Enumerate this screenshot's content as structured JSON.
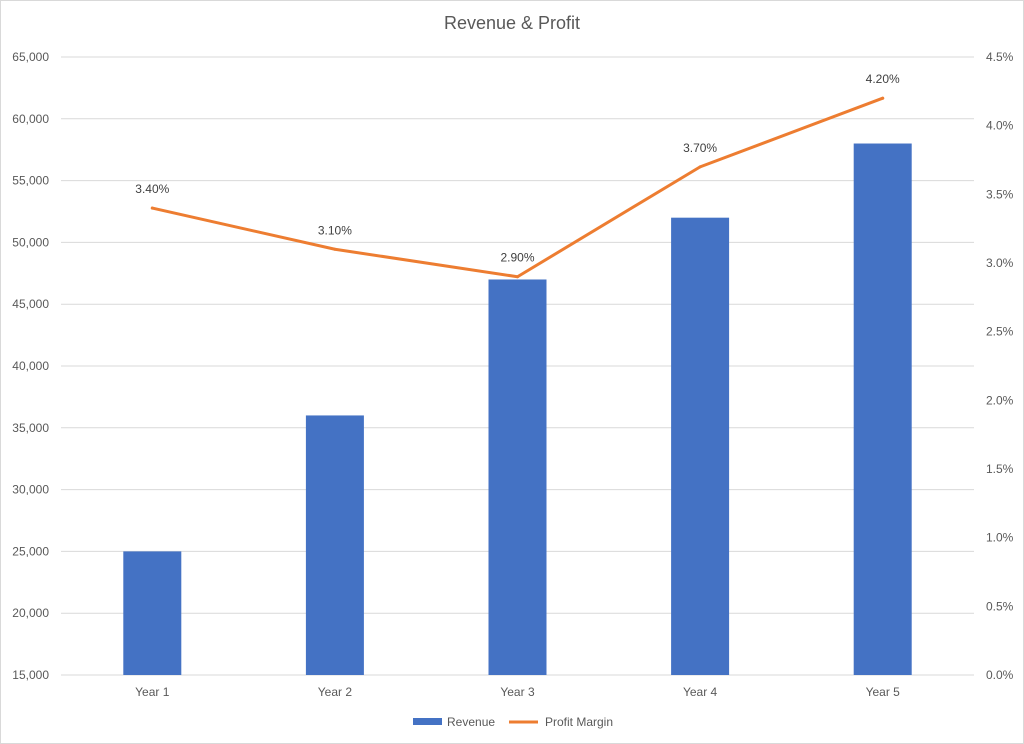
{
  "chart_data": {
    "type": "bar",
    "title": "Revenue & Profit",
    "categories": [
      "Year 1",
      "Year 2",
      "Year 3",
      "Year 4",
      "Year 5"
    ],
    "series": [
      {
        "name": "Revenue",
        "type": "bar",
        "axis": "left",
        "color": "#4472C4",
        "values": [
          25000,
          36000,
          47000,
          52000,
          58000
        ]
      },
      {
        "name": "Profit Margin",
        "type": "line",
        "axis": "right",
        "color": "#ED7D31",
        "values": [
          0.034,
          0.031,
          0.029,
          0.037,
          0.042
        ],
        "data_labels": [
          "3.40%",
          "3.10%",
          "2.90%",
          "3.70%",
          "4.20%"
        ]
      }
    ],
    "ylim": [
      15000,
      65000
    ],
    "y_ticks": [
      "15,000",
      "20,000",
      "25,000",
      "30,000",
      "35,000",
      "40,000",
      "45,000",
      "50,000",
      "55,000",
      "60,000",
      "65,000"
    ],
    "y2lim": [
      0,
      0.045
    ],
    "y2_ticks": [
      "0.0%",
      "0.5%",
      "1.0%",
      "1.5%",
      "2.0%",
      "2.5%",
      "3.0%",
      "3.5%",
      "4.0%",
      "4.5%"
    ],
    "grid": true,
    "legend_position": "bottom",
    "xlabel": "",
    "ylabel": ""
  }
}
